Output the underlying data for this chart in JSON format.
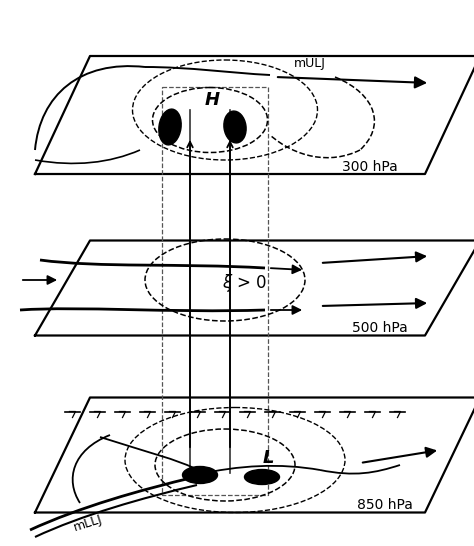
{
  "bg": "#ffffff",
  "lw_plane": 1.5,
  "lw_flow": 1.3,
  "lw_arrow": 1.5,
  "lw_dashed": 1.1,
  "label_300": "300 hPa",
  "label_500": "500 hPa",
  "label_850": "850 hPa",
  "label_H": "H",
  "label_L": "L",
  "label_mULJ": "mULJ",
  "label_mLLJ": "mLLJ",
  "label_xi": "$\\xi$ > 0"
}
